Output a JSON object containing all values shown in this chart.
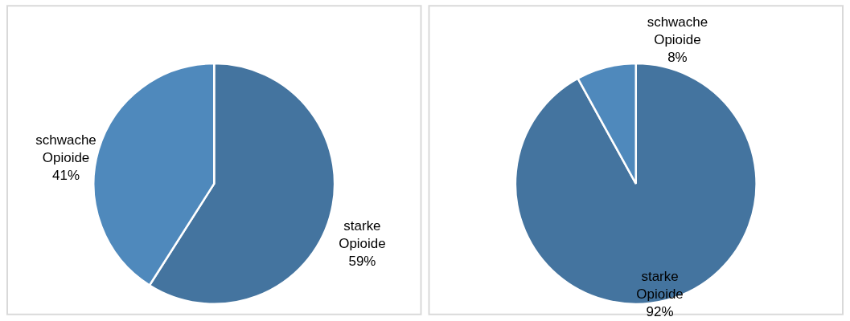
{
  "chart_data": [
    {
      "type": "pie",
      "categories": [
        "starke Opioide",
        "schwache Opioide"
      ],
      "values": [
        59,
        41
      ],
      "colors": [
        "#44749f",
        "#4f89bc"
      ],
      "value_labels": [
        "59%",
        "41%"
      ]
    },
    {
      "type": "pie",
      "categories": [
        "starke Opioide",
        "schwache Opioide"
      ],
      "values": [
        92,
        8
      ],
      "colors": [
        "#44749f",
        "#4f89bc"
      ],
      "value_labels": [
        "92%",
        "8%"
      ]
    }
  ]
}
